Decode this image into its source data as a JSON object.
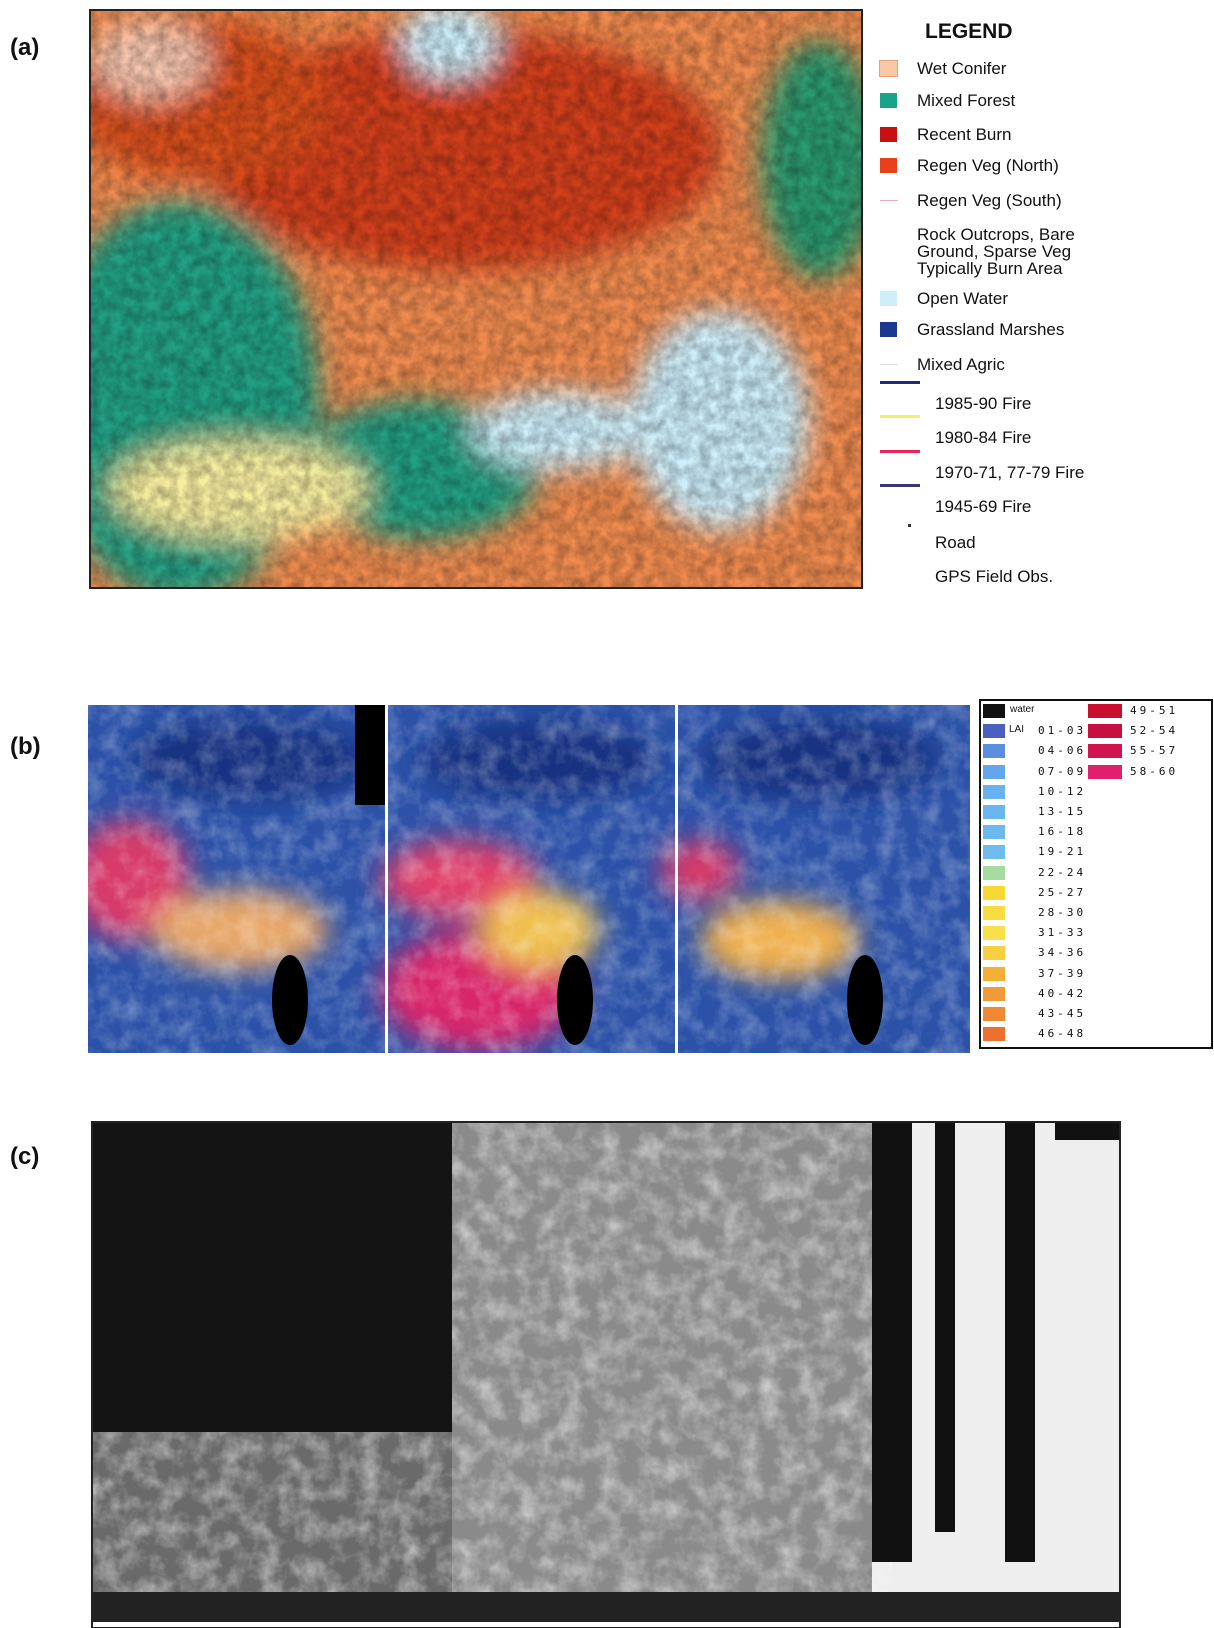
{
  "panel_a": {
    "label": "(a)",
    "legend_title": "LEGEND",
    "items": [
      {
        "label": "Wet Conifer",
        "color": "#f9c9a6",
        "kind": "swatch"
      },
      {
        "label": "Mixed Forest",
        "color": "#1aa38a",
        "kind": "swatch"
      },
      {
        "label": "Recent Burn",
        "color": "#c81010",
        "kind": "swatch"
      },
      {
        "label": "Regen Veg (North)",
        "color": "#e8401a",
        "kind": "swatch"
      },
      {
        "label": "Regen Veg (South)",
        "color": "#f0a8c4",
        "kind": "line"
      },
      {
        "label": "Rock Outcrops, Bare Ground, Sparse Veg Typically Burn Area",
        "color": "#ffffff",
        "kind": "swatch"
      },
      {
        "label": "Open Water",
        "color": "#cdeefa",
        "kind": "swatch"
      },
      {
        "label": "Grassland Marshes",
        "color": "#1b3a8f",
        "kind": "swatch"
      },
      {
        "label": "Mixed Agric",
        "color": "#dddddd",
        "kind": "line"
      },
      {
        "label": "1985-90 Fire",
        "color": "#1b2a7a",
        "kind": "line"
      },
      {
        "label": "1980-84 Fire",
        "color": "#f4ee6a",
        "kind": "line"
      },
      {
        "label": "1970-71, 77-79 Fire",
        "color": "#e8245a",
        "kind": "line"
      },
      {
        "label": "1945-69 Fire",
        "color": "#3a3470",
        "kind": "line"
      },
      {
        "label": "Road",
        "color": "#333333",
        "kind": "dot"
      },
      {
        "label": "GPS Field Obs.",
        "color": "#ffffff",
        "kind": "dot"
      }
    ]
  },
  "panel_b": {
    "label": "(b)",
    "legend": [
      {
        "label": "water",
        "color": "#111111"
      },
      {
        "prefix": "LAI",
        "label": "01-03",
        "color": "#4a5fbf"
      },
      {
        "label": "04-06",
        "color": "#5a8ee0"
      },
      {
        "label": "07-09",
        "color": "#62a6ec"
      },
      {
        "label": "10-12",
        "color": "#6ab2ef"
      },
      {
        "label": "13-15",
        "color": "#6ab6f0"
      },
      {
        "label": "16-18",
        "color": "#6cb8ef"
      },
      {
        "label": "19-21",
        "color": "#70bcee"
      },
      {
        "label": "22-24",
        "color": "#a6dca0"
      },
      {
        "label": "25-27",
        "color": "#f7d935"
      },
      {
        "label": "28-30",
        "color": "#f8dc40"
      },
      {
        "label": "31-33",
        "color": "#f8e04a"
      },
      {
        "label": "34-36",
        "color": "#f6d040"
      },
      {
        "label": "37-39",
        "color": "#f4b035"
      },
      {
        "label": "40-42",
        "color": "#f09a38"
      },
      {
        "label": "43-45",
        "color": "#ee8a36"
      },
      {
        "label": "46-48",
        "color": "#ec7030"
      },
      {
        "label": "49-51",
        "color": "#c8102e"
      },
      {
        "label": "52-54",
        "color": "#c81040"
      },
      {
        "label": "55-57",
        "color": "#d01450"
      },
      {
        "label": "58-60",
        "color": "#e0206a"
      }
    ]
  },
  "panel_c": {
    "label": "(c)"
  }
}
